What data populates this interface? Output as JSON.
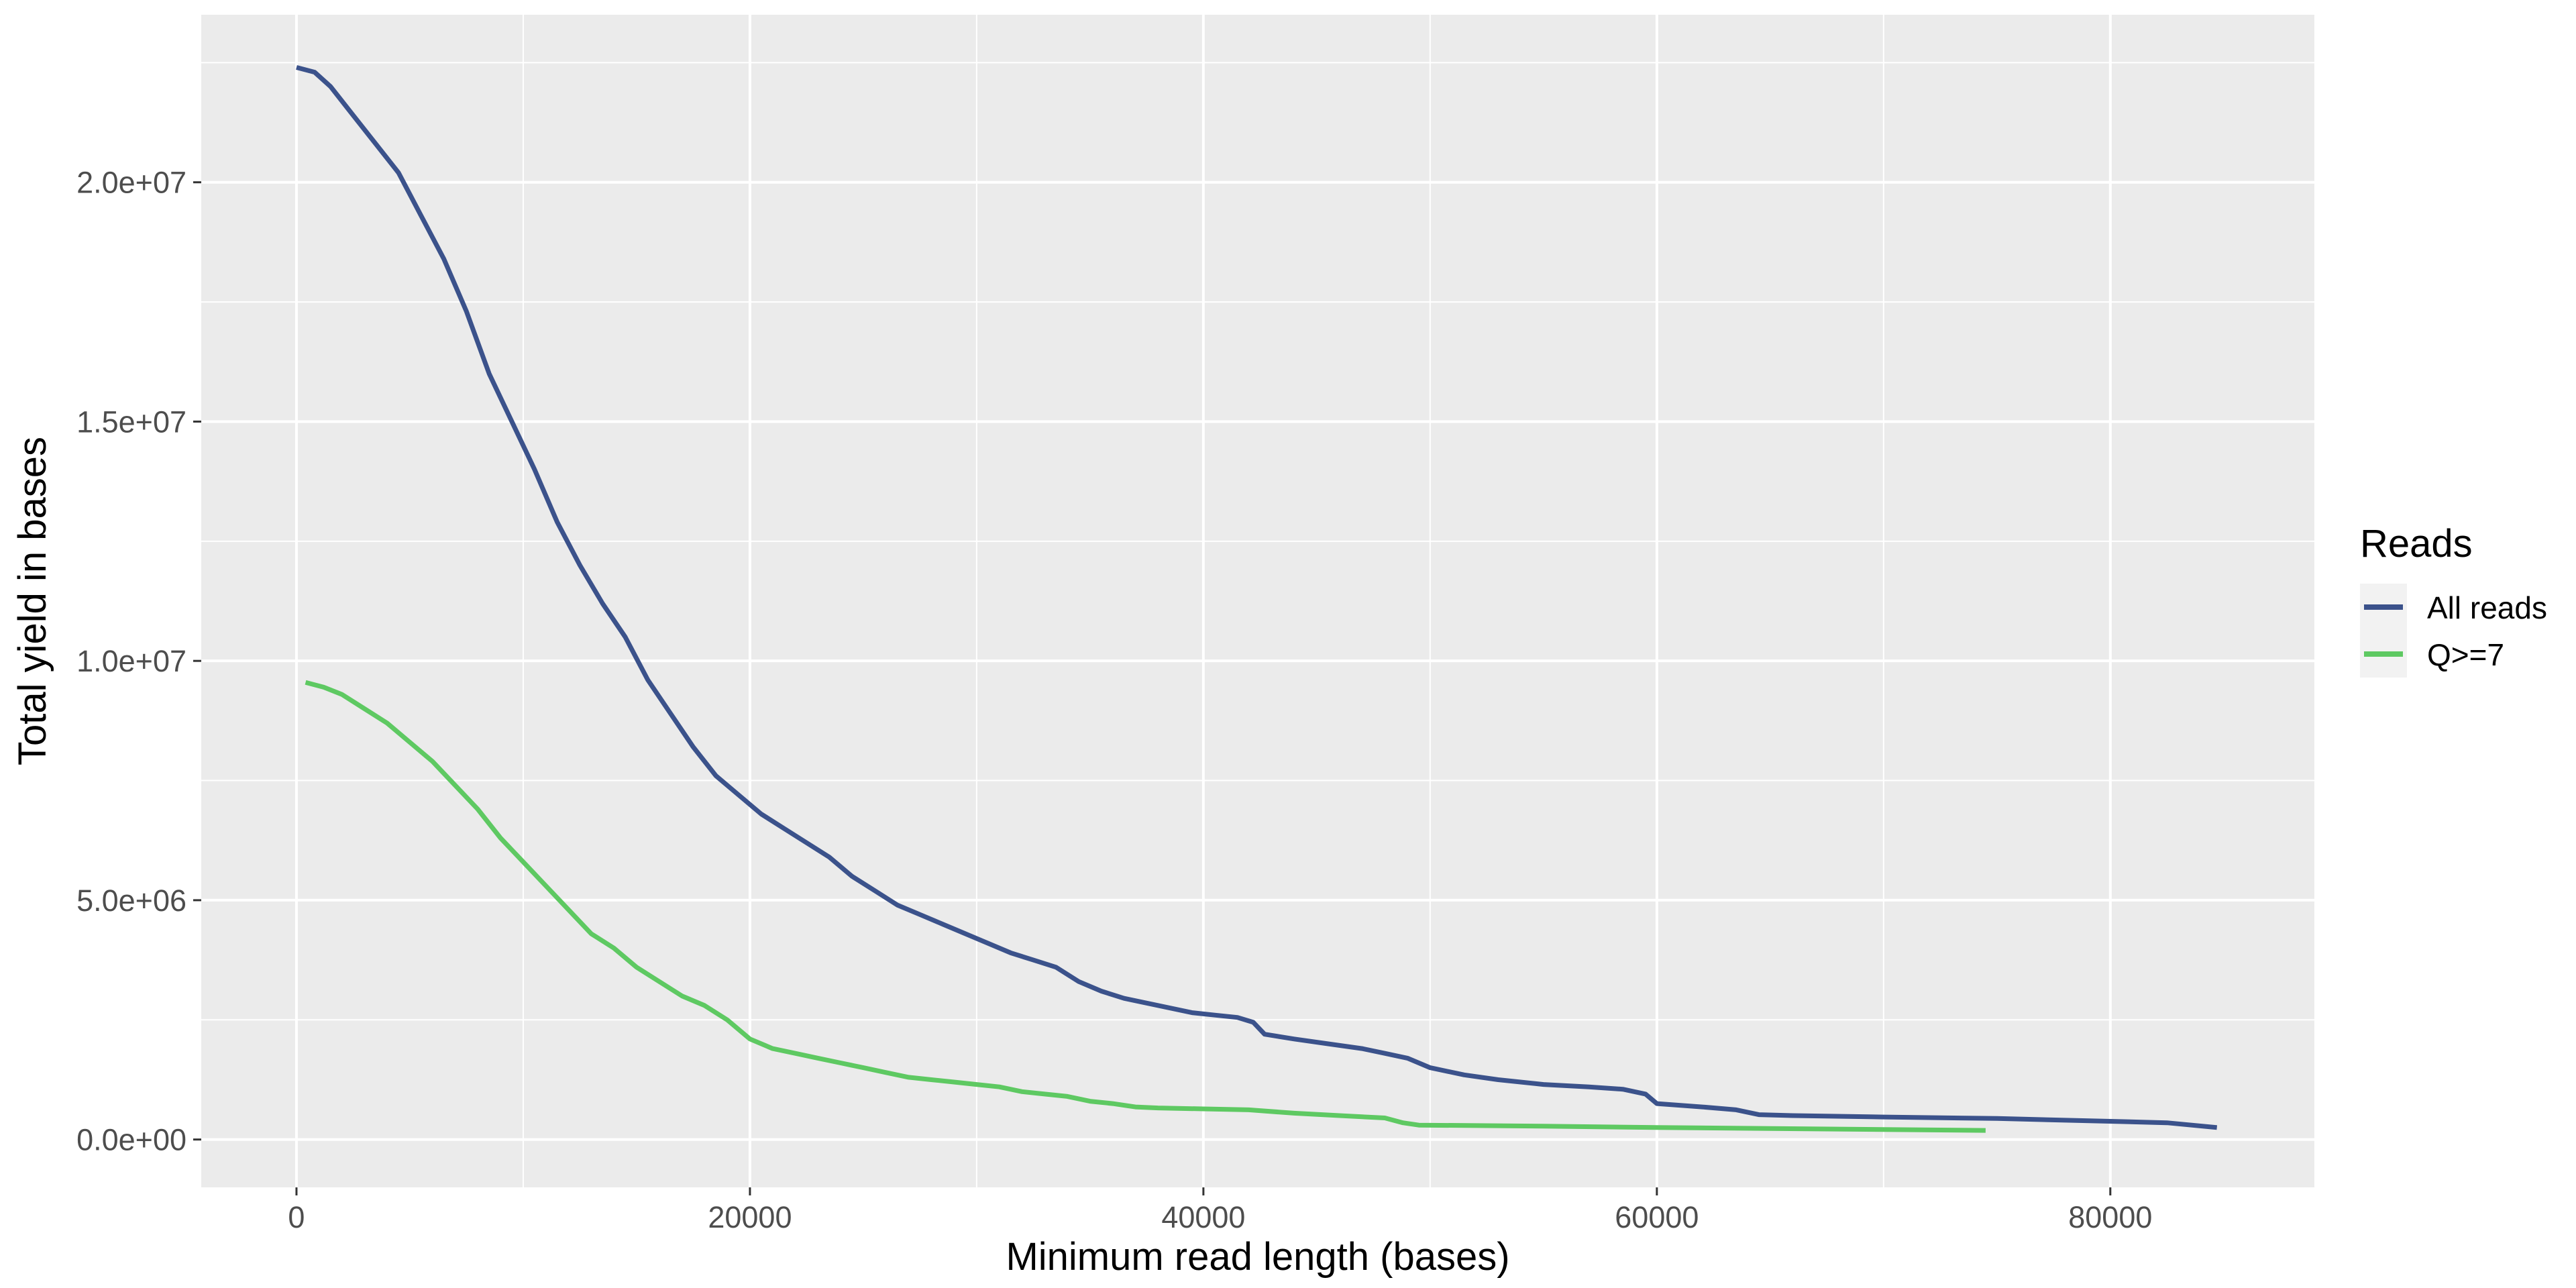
{
  "chart_data": {
    "type": "line",
    "title": "",
    "xlabel": "Minimum read length (bases)",
    "ylabel": "Total yield in bases",
    "xlim": [
      -4200,
      89000
    ],
    "ylim": [
      -1000000,
      23500000
    ],
    "x_ticks": [
      0,
      20000,
      40000,
      60000,
      80000
    ],
    "x_tick_labels": [
      "0",
      "20000",
      "40000",
      "60000",
      "80000"
    ],
    "y_ticks": [
      0,
      5000000,
      10000000,
      15000000,
      20000000
    ],
    "y_tick_labels": [
      "0.0e+00",
      "5.0e+06",
      "1.0e+07",
      "1.5e+07",
      "2.0e+07"
    ],
    "grid": true,
    "legend": {
      "title": "Reads",
      "placement": "right",
      "entries": [
        {
          "label": "All reads",
          "color": "#3b528b"
        },
        {
          "label": "Q>=7",
          "color": "#5ec962"
        }
      ]
    },
    "series": [
      {
        "name": "All reads",
        "color": "#3b528b",
        "points": [
          [
            0,
            22400000
          ],
          [
            800,
            22300000
          ],
          [
            1500,
            22000000
          ],
          [
            2500,
            21400000
          ],
          [
            3500,
            20800000
          ],
          [
            4500,
            20200000
          ],
          [
            5500,
            19300000
          ],
          [
            6500,
            18400000
          ],
          [
            7500,
            17300000
          ],
          [
            8500,
            16000000
          ],
          [
            9500,
            15000000
          ],
          [
            10500,
            14000000
          ],
          [
            11500,
            12900000
          ],
          [
            12500,
            12000000
          ],
          [
            13500,
            11200000
          ],
          [
            14500,
            10500000
          ],
          [
            15500,
            9600000
          ],
          [
            16500,
            8900000
          ],
          [
            17500,
            8200000
          ],
          [
            18500,
            7600000
          ],
          [
            19500,
            7200000
          ],
          [
            20500,
            6800000
          ],
          [
            21500,
            6500000
          ],
          [
            22500,
            6200000
          ],
          [
            23500,
            5900000
          ],
          [
            24500,
            5500000
          ],
          [
            25500,
            5200000
          ],
          [
            26500,
            4900000
          ],
          [
            27500,
            4700000
          ],
          [
            28500,
            4500000
          ],
          [
            29500,
            4300000
          ],
          [
            30500,
            4100000
          ],
          [
            31500,
            3900000
          ],
          [
            32500,
            3750000
          ],
          [
            33500,
            3600000
          ],
          [
            34500,
            3300000
          ],
          [
            35500,
            3100000
          ],
          [
            36500,
            2950000
          ],
          [
            37500,
            2850000
          ],
          [
            38500,
            2750000
          ],
          [
            39500,
            2650000
          ],
          [
            40500,
            2600000
          ],
          [
            41500,
            2550000
          ],
          [
            42200,
            2450000
          ],
          [
            42700,
            2200000
          ],
          [
            44000,
            2100000
          ],
          [
            45500,
            2000000
          ],
          [
            47000,
            1900000
          ],
          [
            48000,
            1800000
          ],
          [
            49000,
            1700000
          ],
          [
            50000,
            1500000
          ],
          [
            51500,
            1350000
          ],
          [
            53000,
            1250000
          ],
          [
            55000,
            1150000
          ],
          [
            57000,
            1100000
          ],
          [
            58500,
            1050000
          ],
          [
            59500,
            950000
          ],
          [
            60000,
            750000
          ],
          [
            62000,
            680000
          ],
          [
            63500,
            620000
          ],
          [
            64500,
            520000
          ],
          [
            66000,
            500000
          ],
          [
            70000,
            470000
          ],
          [
            75000,
            440000
          ],
          [
            80000,
            380000
          ],
          [
            82500,
            350000
          ],
          [
            84700,
            250000
          ]
        ]
      },
      {
        "name": "Q>=7",
        "color": "#5ec962",
        "points": [
          [
            400,
            9550000
          ],
          [
            1200,
            9450000
          ],
          [
            2000,
            9300000
          ],
          [
            3000,
            9000000
          ],
          [
            4000,
            8700000
          ],
          [
            5000,
            8300000
          ],
          [
            6000,
            7900000
          ],
          [
            7000,
            7400000
          ],
          [
            8000,
            6900000
          ],
          [
            9000,
            6300000
          ],
          [
            10000,
            5800000
          ],
          [
            11000,
            5300000
          ],
          [
            12000,
            4800000
          ],
          [
            13000,
            4300000
          ],
          [
            14000,
            4000000
          ],
          [
            15000,
            3600000
          ],
          [
            16000,
            3300000
          ],
          [
            17000,
            3000000
          ],
          [
            18000,
            2800000
          ],
          [
            19000,
            2500000
          ],
          [
            20000,
            2100000
          ],
          [
            21000,
            1900000
          ],
          [
            22000,
            1800000
          ],
          [
            23000,
            1700000
          ],
          [
            24000,
            1600000
          ],
          [
            25000,
            1500000
          ],
          [
            26000,
            1400000
          ],
          [
            27000,
            1300000
          ],
          [
            28000,
            1250000
          ],
          [
            29000,
            1200000
          ],
          [
            30000,
            1150000
          ],
          [
            31000,
            1100000
          ],
          [
            32000,
            1000000
          ],
          [
            33000,
            950000
          ],
          [
            34000,
            900000
          ],
          [
            35000,
            800000
          ],
          [
            36000,
            750000
          ],
          [
            37000,
            680000
          ],
          [
            38000,
            660000
          ],
          [
            40000,
            640000
          ],
          [
            42000,
            620000
          ],
          [
            44000,
            550000
          ],
          [
            46000,
            500000
          ],
          [
            48000,
            450000
          ],
          [
            48800,
            350000
          ],
          [
            49500,
            300000
          ],
          [
            55000,
            280000
          ],
          [
            60000,
            250000
          ],
          [
            65000,
            230000
          ],
          [
            70000,
            210000
          ],
          [
            74500,
            190000
          ]
        ]
      }
    ]
  }
}
